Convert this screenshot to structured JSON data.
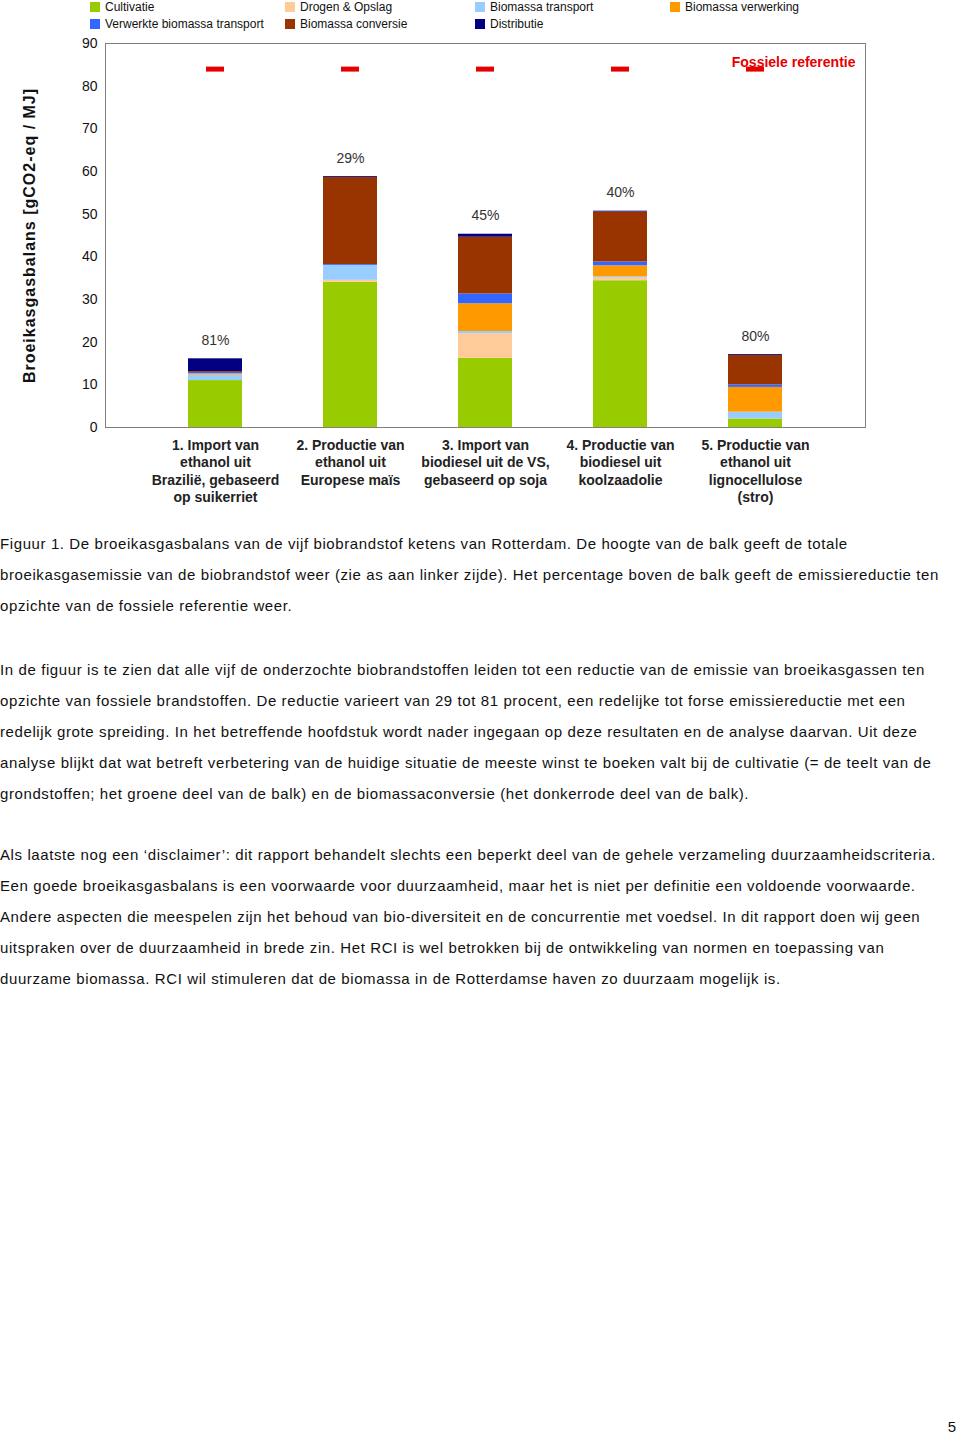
{
  "chart_data": {
    "type": "bar",
    "stacked": true,
    "ylabel": "Broeikasgasbalans [gCO2-eq / MJ]",
    "categories": [
      "1. Import van\nethanol uit\nBrazilië, gebaseerd\nop suikerriet",
      "2. Productie van\nethanol uit\nEuropese maïs",
      "3. Import van\nbiodiesel uit de VS,\ngebaseerd op soja",
      "4. Productie van\nbiodiesel uit\nkoolzaadolie",
      "5. Productie van\nethanol uit\nlignocellulose\n(stro)"
    ],
    "series": [
      {
        "name": "Cultivatie",
        "color": "#99cc00",
        "values": [
          11.0,
          34.0,
          16.2,
          34.4,
          2.0
        ]
      },
      {
        "name": "Drogen & Opslag",
        "color": "#ffcc99",
        "values": [
          0,
          0.5,
          5.8,
          0.6,
          0
        ]
      },
      {
        "name": "Biomassa transport",
        "color": "#99ccff",
        "values": [
          1.3,
          3.5,
          0.5,
          0.3,
          1.6
        ]
      },
      {
        "name": "Biomassa verwerking",
        "color": "#ff9900",
        "values": [
          0.3,
          0,
          6.5,
          2.6,
          5.8
        ]
      },
      {
        "name": "Verwerkte biomassa transport",
        "color": "#3366ff",
        "values": [
          0.3,
          0.2,
          2.3,
          0.9,
          0.6
        ]
      },
      {
        "name": "Biomassa conversie",
        "color": "#993300",
        "values": [
          0.2,
          20.4,
          13.3,
          11.7,
          6.9
        ]
      },
      {
        "name": "Distributie",
        "color": "#000080",
        "values": [
          3.0,
          0.2,
          0.7,
          0.2,
          0.2
        ]
      }
    ],
    "reduction_labels": [
      "81%",
      "29%",
      "45%",
      "40%",
      "80%"
    ],
    "reference": {
      "label": "Fossiele referentie",
      "value": 84,
      "color": "#e60000"
    },
    "ylim": [
      0,
      90
    ],
    "yticks": [
      0,
      10,
      20,
      30,
      40,
      50,
      60,
      70,
      80,
      90
    ],
    "grid": false,
    "legend": "top"
  },
  "caption": "Figuur 1. De broeikasgasbalans van de vijf biobrandstof ketens van Rotterdam. De hoogte van de balk geeft de totale broeikasgasemissie van de biobrandstof weer (zie as aan linker zijde). Het percentage boven de balk geeft de emissiereductie ten opzichte van de fossiele referentie weer.",
  "paragraphs": [
    "In de figuur is te zien dat alle vijf de onderzochte biobrandstoffen leiden tot een reductie van de emissie van broeikasgassen ten opzichte van fossiele brandstoffen. De reductie varieert van 29 tot 81 procent, een redelijke tot forse emissiereductie met een redelijk grote spreiding. In het betreffende hoofdstuk wordt nader ingegaan op deze resultaten en de analyse daarvan. Uit deze analyse blijkt dat wat betreft verbetering van de huidige situatie de meeste winst te boeken valt bij de cultivatie (= de teelt van de grondstoffen; het groene deel van de balk) en de biomassaconversie (het donkerrode deel van de balk).",
    "Als laatste nog een ‘disclaimer’: dit rapport behandelt slechts een beperkt deel van de gehele verzameling duurzaamheidscriteria. Een goede broeikasgasbalans is een voorwaarde voor duurzaamheid, maar het is niet per definitie een voldoende voorwaarde. Andere aspecten die meespelen zijn het behoud van bio-diversiteit en de concurrentie met voedsel. In dit rapport doen wij geen uitspraken over de duurzaamheid in brede zin. Het RCI is wel betrokken bij de ontwikkeling van normen en toepassing van duurzame biomassa. RCI wil stimuleren dat de biomassa in de Rotterdamse haven zo duurzaam mogelijk is."
  ],
  "page_number": 5
}
